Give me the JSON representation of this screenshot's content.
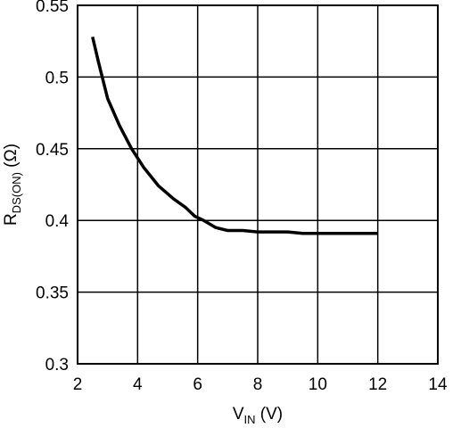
{
  "chart_data": {
    "type": "line",
    "xlabel": {
      "main": "V",
      "sub": "IN",
      "unit": " (V)"
    },
    "ylabel": {
      "main": "R",
      "sub": "DS(ON)",
      "unit": " (Ω)"
    },
    "xlim": [
      2,
      14
    ],
    "ylim": [
      0.3,
      0.55
    ],
    "xticks": [
      2,
      4,
      6,
      8,
      10,
      12,
      14
    ],
    "xtick_labels": [
      "2",
      "4",
      "6",
      "8",
      "10",
      "12",
      "14"
    ],
    "yticks": [
      0.3,
      0.35,
      0.4,
      0.45,
      0.5,
      0.55
    ],
    "ytick_labels": [
      "0.3",
      "0.35",
      "0.4",
      "0.45",
      "0.5",
      "0.55"
    ],
    "grid": true,
    "series": [
      {
        "x": [
          2.5,
          2.7,
          3.0,
          3.4,
          3.8,
          4.2,
          4.7,
          5.2,
          5.6,
          5.9,
          6.2,
          6.6,
          7.0,
          7.5,
          8.0,
          9.0,
          9.5,
          10.0,
          11.0,
          12.0
        ],
        "y": [
          0.528,
          0.51,
          0.485,
          0.466,
          0.45,
          0.437,
          0.424,
          0.415,
          0.409,
          0.403,
          0.4,
          0.395,
          0.393,
          0.393,
          0.392,
          0.392,
          0.391,
          0.391,
          0.391,
          0.391
        ],
        "color": "#000000"
      }
    ]
  }
}
